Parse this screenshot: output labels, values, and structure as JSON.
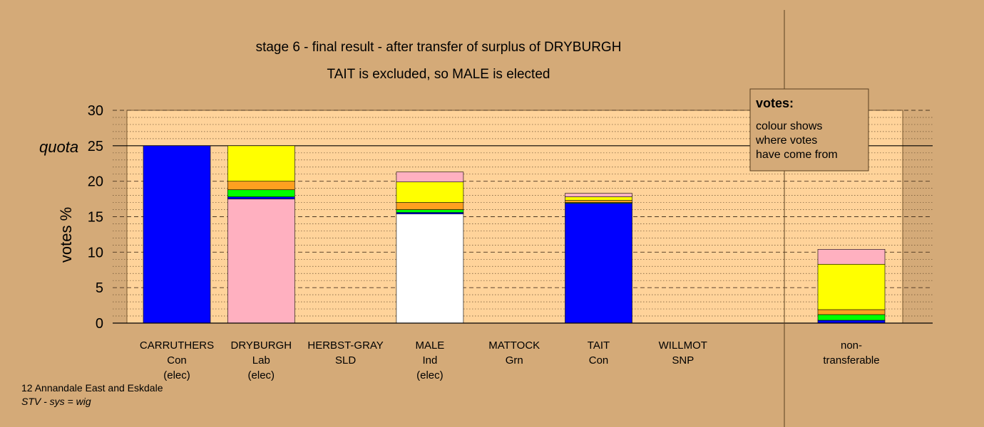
{
  "chart_data": {
    "type": "bar",
    "stacked": true,
    "title": "stage 6 - final result - after transfer of surplus of DRYBURGH",
    "subtitle": "TAIT is excluded, so MALE is elected",
    "ylabel": "votes %",
    "ylim": [
      0,
      30
    ],
    "yticks": [
      "0",
      "5",
      "10",
      "15",
      "20",
      "25",
      "30"
    ],
    "quota": 25,
    "quota_label": "quota",
    "grid": true,
    "legend": {
      "placement": "top-right",
      "title": "votes:",
      "lines": [
        "colour shows",
        "where votes",
        "have come from"
      ]
    },
    "footer": {
      "line1": "12 Annandale East and Eskdale",
      "line2": "STV - sys = wig"
    },
    "colors": {
      "Con": "#0000ff",
      "Lab": "#ffb0c0",
      "Ind": "#ffffff",
      "Grn": "#00ff00",
      "SLD": "#ffa020",
      "SNP": "#ffff00",
      "background": "#d4aa78",
      "plot_area": "#ffd39a"
    },
    "categories": [
      {
        "name": "CARRUTHERS",
        "party": "Con",
        "note": "(elec)"
      },
      {
        "name": "DRYBURGH",
        "party": "Lab",
        "note": "(elec)"
      },
      {
        "name": "HERBST-GRAY",
        "party": "SLD",
        "note": ""
      },
      {
        "name": "MALE",
        "party": "Ind",
        "note": "(elec)"
      },
      {
        "name": "MATTOCK",
        "party": "Grn",
        "note": ""
      },
      {
        "name": "TAIT",
        "party": "Con",
        "note": ""
      },
      {
        "name": "WILLMOT",
        "party": "SNP",
        "note": ""
      },
      {
        "name": "non-",
        "party": "transferable",
        "note": ""
      }
    ],
    "bars": [
      {
        "candidate": "CARRUTHERS",
        "segments": [
          {
            "from": "Con",
            "value": 25.0
          }
        ]
      },
      {
        "candidate": "DRYBURGH",
        "segments": [
          {
            "from": "Lab",
            "value": 17.5
          },
          {
            "from": "Con",
            "value": 0.3
          },
          {
            "from": "Grn",
            "value": 1.0
          },
          {
            "from": "SLD",
            "value": 1.2
          },
          {
            "from": "SNP",
            "value": 5.0
          }
        ]
      },
      {
        "candidate": "HERBST-GRAY",
        "segments": []
      },
      {
        "candidate": "MALE",
        "segments": [
          {
            "from": "Ind",
            "value": 15.4
          },
          {
            "from": "Con",
            "value": 0.2
          },
          {
            "from": "Grn",
            "value": 0.4
          },
          {
            "from": "SLD",
            "value": 1.0
          },
          {
            "from": "SNP",
            "value": 2.9
          },
          {
            "from": "Lab",
            "value": 1.4
          }
        ]
      },
      {
        "candidate": "MATTOCK",
        "segments": []
      },
      {
        "candidate": "TAIT",
        "segments": [
          {
            "from": "Con",
            "value": 16.9
          },
          {
            "from": "Grn",
            "value": 0.1
          },
          {
            "from": "SLD",
            "value": 0.3
          },
          {
            "from": "SNP",
            "value": 0.5
          },
          {
            "from": "Lab",
            "value": 0.5
          }
        ]
      },
      {
        "candidate": "WILLMOT",
        "segments": []
      },
      {
        "candidate": "non-transferable",
        "segments": [
          {
            "from": "Con",
            "value": 0.4
          },
          {
            "from": "Grn",
            "value": 0.8
          },
          {
            "from": "SLD",
            "value": 0.7
          },
          {
            "from": "SNP",
            "value": 6.4
          },
          {
            "from": "Lab",
            "value": 2.1
          }
        ]
      }
    ]
  }
}
